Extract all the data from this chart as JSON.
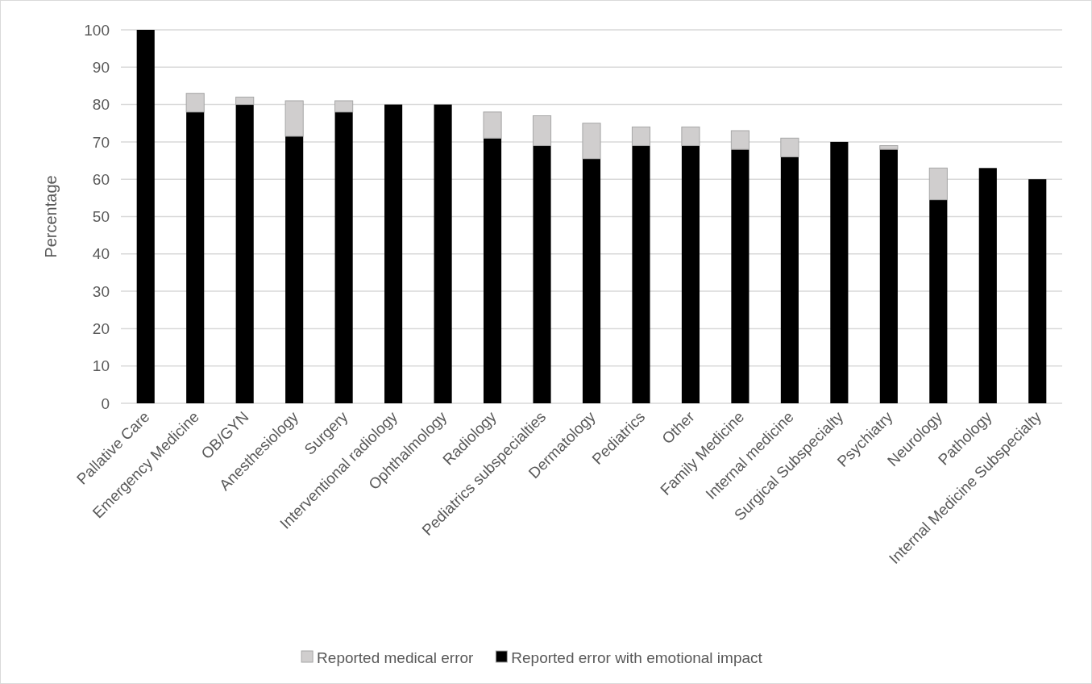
{
  "chart_data": {
    "type": "bar",
    "stacked": true,
    "ylabel": "Percentage",
    "categories": [
      "Pallative Care",
      "Emergency Medicine",
      "OB/GYN",
      "Anesthesiology",
      "Surgery",
      "Interventional radiology",
      "Ophthalmology",
      "Radiology",
      "Pediatrics subspecialties",
      "Dermatology",
      "Pediatrics",
      "Other",
      "Family Medicine",
      "Internal medicine",
      "Surgical Subspecialty",
      "Psychiatry",
      "Neurology",
      "Pathology",
      "Internal Medicine Subspecialty"
    ],
    "series": [
      {
        "name": "Reported error with emotional impact",
        "color": "#000000",
        "values": [
          100,
          78,
          80,
          71.5,
          78,
          80,
          80,
          71,
          69,
          65.5,
          69,
          69,
          68,
          66,
          70,
          68,
          54.5,
          63,
          60
        ]
      },
      {
        "name": "Reported medical error",
        "color": "#d0cece",
        "values": [
          0,
          5,
          2,
          9.5,
          3,
          0,
          0,
          7,
          8,
          9.5,
          5,
          5,
          5,
          5,
          0,
          1,
          8.5,
          0,
          0
        ]
      }
    ],
    "ylim": [
      0,
      100
    ],
    "yticks": [
      0,
      10,
      20,
      30,
      40,
      50,
      60,
      70,
      80,
      90,
      100
    ],
    "grid": "y",
    "legend": "bottom"
  }
}
